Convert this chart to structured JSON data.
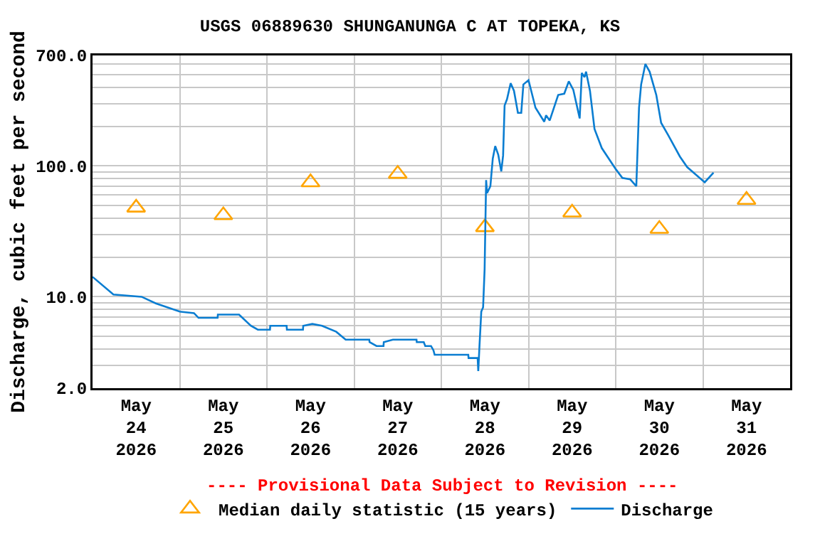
{
  "chart_data": {
    "type": "line",
    "title": "USGS 06889630 SHUNGANUNGA C AT TOPEKA, KS",
    "ylabel": "Discharge, cubic feet per second",
    "annotations": [
      "---- Provisional Data Subject to Revision ----"
    ],
    "log": "y",
    "grid": true,
    "legend": "bottom",
    "xlim": [
      "2026-05-24",
      "2026-06-01"
    ],
    "xticks": [
      {
        "value": "2026-05-24T12:00",
        "label": "May\n24\n2026"
      },
      {
        "value": "2026-05-25T12:00",
        "label": "May\n25\n2026"
      },
      {
        "value": "2026-05-26T12:00",
        "label": "May\n26\n2026"
      },
      {
        "value": "2026-05-27T12:00",
        "label": "May\n27\n2026"
      },
      {
        "value": "2026-05-28T12:00",
        "label": "May\n28\n2026"
      },
      {
        "value": "2026-05-29T12:00",
        "label": "May\n29\n2026"
      },
      {
        "value": "2026-05-30T12:00",
        "label": "May\n30\n2026"
      },
      {
        "value": "2026-05-31T12:00",
        "label": "May\n31\n2026"
      },
      {
        "value": "2026-05-25",
        "label": null
      },
      {
        "value": "2026-05-26",
        "label": null
      },
      {
        "value": "2026-05-27",
        "label": null
      },
      {
        "value": "2026-05-28",
        "label": null
      },
      {
        "value": "2026-05-29",
        "label": null
      },
      {
        "value": "2026-05-30",
        "label": null
      },
      {
        "value": "2026-05-31",
        "label": null
      }
    ],
    "ylim": [
      2,
      700
    ],
    "yticks": [
      {
        "value": 2,
        "label": "2.0"
      },
      {
        "value": 10,
        "label": "10.0"
      },
      {
        "value": 100,
        "label": "100.0"
      },
      {
        "value": 700,
        "label": "700.0"
      },
      {
        "value": 3,
        "label": null
      },
      {
        "value": 4,
        "label": null
      },
      {
        "value": 5,
        "label": null
      },
      {
        "value": 6,
        "label": null
      },
      {
        "value": 7,
        "label": null
      },
      {
        "value": 8,
        "label": null
      },
      {
        "value": 9,
        "label": null
      },
      {
        "value": 20,
        "label": null
      },
      {
        "value": 30,
        "label": null
      },
      {
        "value": 40,
        "label": null
      },
      {
        "value": 50,
        "label": null
      },
      {
        "value": 60,
        "label": null
      },
      {
        "value": 70,
        "label": null
      },
      {
        "value": 80,
        "label": null
      },
      {
        "value": 90,
        "label": null
      },
      {
        "value": 200,
        "label": null
      },
      {
        "value": 300,
        "label": null
      },
      {
        "value": 400,
        "label": null
      },
      {
        "value": 500,
        "label": null
      },
      {
        "value": 600,
        "label": null
      }
    ],
    "series": [
      {
        "name": "Median daily statistic (15 years)",
        "type": "scatter",
        "marker": "triangle",
        "color": "#ffa500",
        "x": [
          "2026-05-24T12:00",
          "2026-05-25T12:00",
          "2026-05-26T12:00",
          "2026-05-27T12:00",
          "2026-05-28T12:00",
          "2026-05-29T12:00",
          "2026-05-30T12:00",
          "2026-05-31T12:00"
        ],
        "values": [
          48,
          42,
          75,
          87,
          34,
          44,
          33,
          55
        ]
      },
      {
        "name": "Discharge",
        "color": "#0a7dd1",
        "x": [
          "2026-05-24T00:00",
          "2026-05-24T05:45",
          "2026-05-24T13:30",
          "2026-05-24T17:25",
          "2026-05-25T00:00",
          "2026-05-25T03:55",
          "2026-05-25T05:10",
          "2026-05-25T10:25",
          "2026-05-25T10:30",
          "2026-05-25T16:20",
          "2026-05-25T19:35",
          "2026-05-25T21:30",
          "2026-05-26T00:50",
          "2026-05-26T00:55",
          "2026-05-26T05:25",
          "2026-05-26T05:30",
          "2026-05-26T09:55",
          "2026-05-26T10:00",
          "2026-05-26T12:30",
          "2026-05-26T15:10",
          "2026-05-26T19:05",
          "2026-05-26T21:40",
          "2026-05-27T04:10",
          "2026-05-27T04:15",
          "2026-05-27T06:10",
          "2026-05-27T08:05",
          "2026-05-27T08:10",
          "2026-05-27T10:40",
          "2026-05-27T17:10",
          "2026-05-27T17:15",
          "2026-05-27T19:10",
          "2026-05-27T19:35",
          "2026-05-27T21:10",
          "2026-05-27T21:50",
          "2026-05-27T22:10",
          "2026-05-28T07:25",
          "2026-05-28T07:30",
          "2026-05-28T10:00",
          "2026-05-28T10:10",
          "2026-05-28T10:30",
          "2026-05-28T11:00",
          "2026-05-28T11:30",
          "2026-05-28T11:55",
          "2026-05-28T12:20",
          "2026-05-28T12:35",
          "2026-05-28T13:30",
          "2026-05-28T14:10",
          "2026-05-28T14:50",
          "2026-05-28T15:40",
          "2026-05-28T16:30",
          "2026-05-28T17:00",
          "2026-05-28T17:25",
          "2026-05-28T18:05",
          "2026-05-28T19:05",
          "2026-05-28T20:00",
          "2026-05-28T21:05",
          "2026-05-28T22:00",
          "2026-05-28T22:35",
          "2026-05-29T00:00",
          "2026-05-29T01:55",
          "2026-05-29T04:20",
          "2026-05-29T04:50",
          "2026-05-29T05:50",
          "2026-05-29T08:10",
          "2026-05-29T09:50",
          "2026-05-29T11:05",
          "2026-05-29T12:20",
          "2026-05-29T14:05",
          "2026-05-29T14:40",
          "2026-05-29T15:25",
          "2026-05-29T15:50",
          "2026-05-29T16:55",
          "2026-05-29T18:10",
          "2026-05-29T20:10",
          "2026-05-30T00:05",
          "2026-05-30T01:50",
          "2026-05-30T04:00",
          "2026-05-30T05:40",
          "2026-05-30T06:25",
          "2026-05-30T07:00",
          "2026-05-30T08:10",
          "2026-05-30T09:20",
          "2026-05-30T11:10",
          "2026-05-30T12:30",
          "2026-05-30T14:30",
          "2026-05-30T17:40",
          "2026-05-30T19:40",
          "2026-05-31T00:30",
          "2026-05-31T02:55"
        ],
        "values": [
          14.2,
          10.4,
          10,
          8.9,
          7.7,
          7.5,
          6.9,
          6.9,
          7.3,
          7.3,
          6,
          5.6,
          5.6,
          6,
          6,
          5.6,
          5.6,
          6,
          6.2,
          6,
          5.4,
          4.7,
          4.7,
          4.5,
          4.2,
          4.2,
          4.5,
          4.7,
          4.7,
          4.5,
          4.5,
          4.2,
          4.2,
          3.9,
          3.6,
          3.6,
          3.4,
          3.4,
          2.7,
          4.2,
          7.7,
          8.3,
          16.2,
          78,
          62,
          70,
          114,
          142,
          122,
          91,
          120,
          290,
          324,
          430,
          376,
          255,
          255,
          420,
          453,
          279,
          218,
          244,
          223,
          349,
          357,
          444,
          382,
          231,
          514,
          478,
          526,
          376,
          192,
          137,
          94,
          81,
          79,
          70,
          279,
          420,
          602,
          526,
          349,
          214,
          171,
          118,
          98,
          75,
          89
        ]
      }
    ]
  }
}
